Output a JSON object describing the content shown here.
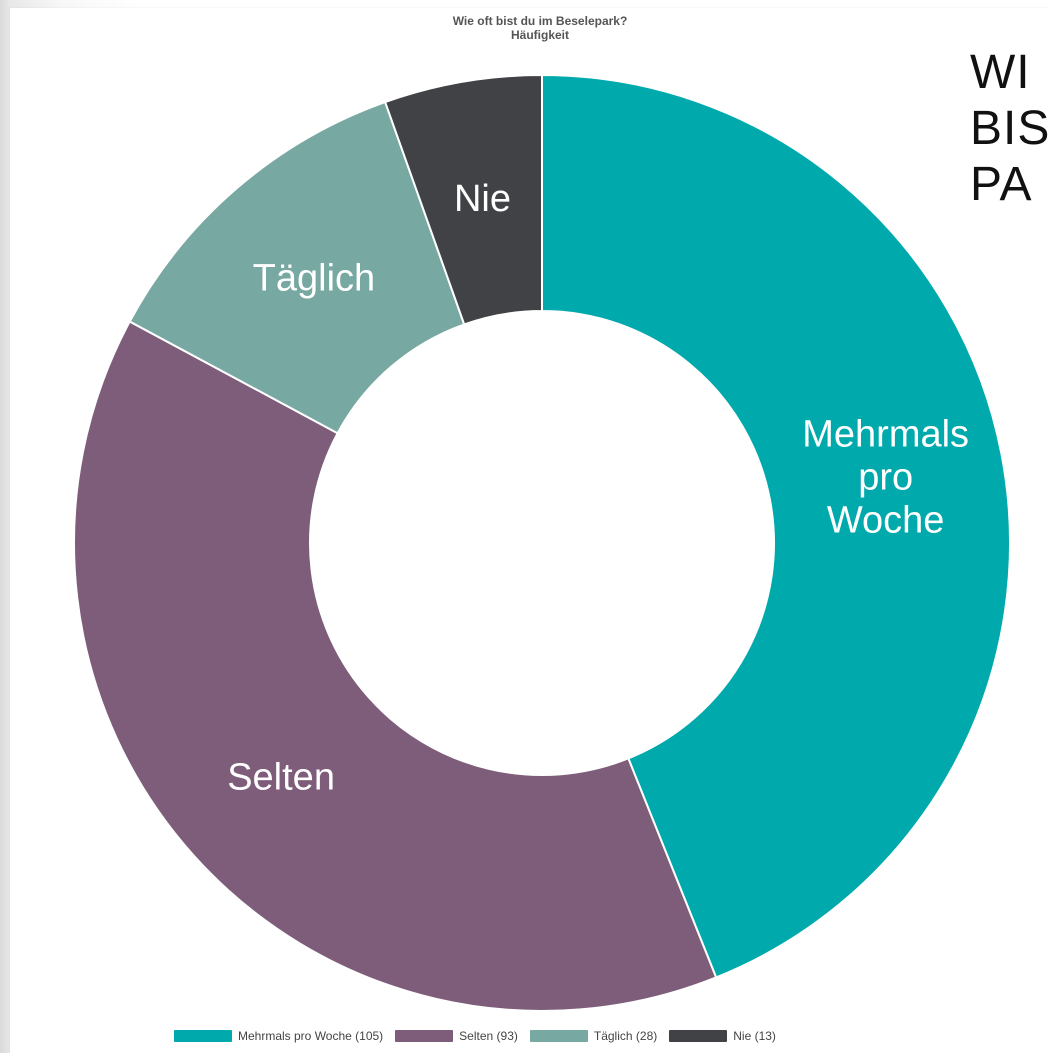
{
  "header": {
    "title_line1": "Wie oft bist du im Beselepark?",
    "title_line2": "Häufigkeit",
    "side_heading_line1": "WI",
    "side_heading_line2": "BIS",
    "side_heading_line3": "PA"
  },
  "chart_data": {
    "type": "pie",
    "title": "Wie oft bist du im Beselepark? Häufigkeit",
    "donut": true,
    "categories": [
      "Mehrmals pro Woche",
      "Selten",
      "Täglich",
      "Nie"
    ],
    "values": [
      105,
      93,
      28,
      13
    ],
    "colors": [
      "#00A9AC",
      "#7E5D7A",
      "#78A8A2",
      "#404246"
    ],
    "labels": [
      [
        "Mehrmals",
        "pro",
        "Woche"
      ],
      [
        "Selten"
      ],
      [
        "Täglich"
      ],
      [
        "Nie"
      ]
    ],
    "legend_position": "bottom",
    "legend_entries": [
      "Mehrmals pro Woche (105)",
      "Selten (93)",
      "Täglich (28)",
      "Nie (13)"
    ]
  }
}
